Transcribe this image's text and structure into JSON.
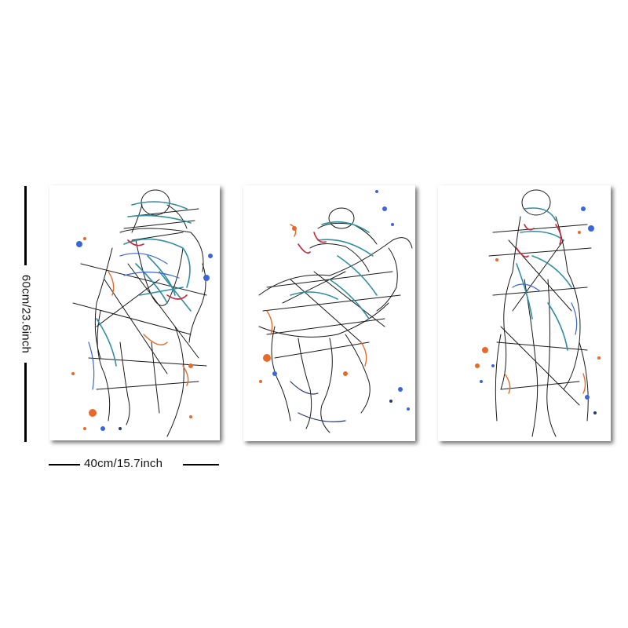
{
  "dimensions": {
    "height_label": "60cm/23.6inch",
    "width_label": "40cm/15.7inch"
  },
  "panels": [
    {
      "subject": "horse and jockey galloping toward viewer, watercolor sketch"
    },
    {
      "subject": "horse and jockey galloping in profile, watercolor sketch"
    },
    {
      "subject": "horse and jockey seen head-on, watercolor sketch"
    }
  ],
  "palette": {
    "line": "#1a1a1a",
    "teal": "#2f8fa0",
    "blue": "#3b66d9",
    "orange": "#e86a2a",
    "red": "#c8283a",
    "navy": "#2b3a6b"
  }
}
